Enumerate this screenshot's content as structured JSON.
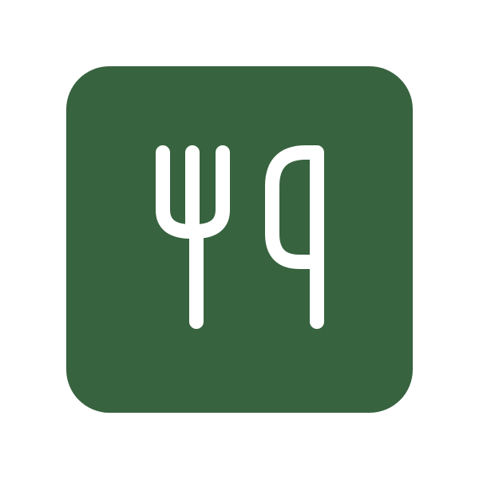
{
  "icon": {
    "name": "restaurant-icon",
    "background_color": "#37633f",
    "glyph_color": "#ffffff",
    "parts": [
      "fork-icon",
      "knife-icon"
    ]
  }
}
